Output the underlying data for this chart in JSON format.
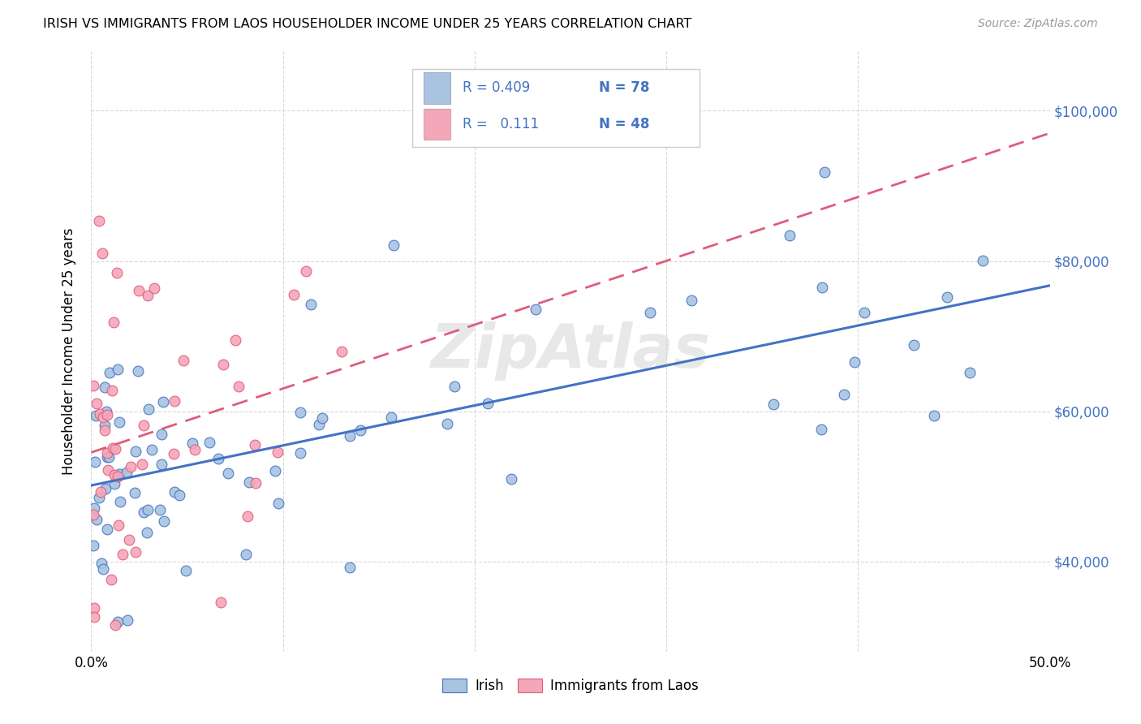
{
  "title": "IRISH VS IMMIGRANTS FROM LAOS HOUSEHOLDER INCOME UNDER 25 YEARS CORRELATION CHART",
  "source": "Source: ZipAtlas.com",
  "ylabel": "Householder Income Under 25 years",
  "ytick_labels": [
    "$40,000",
    "$60,000",
    "$80,000",
    "$100,000"
  ],
  "ytick_values": [
    40000,
    60000,
    80000,
    100000
  ],
  "xlim": [
    0.0,
    0.5
  ],
  "ylim": [
    28000,
    108000
  ],
  "legend_irish": "Irish",
  "legend_laos": "Immigrants from Laos",
  "irish_color": "#a8c4e0",
  "laos_color": "#f4a7b9",
  "irish_line_color": "#4472c4",
  "laos_line_color": "#e05c7a",
  "text_blue": "#4472c4",
  "watermark": "ZipAtlas",
  "grid_color": "#d8d8d8",
  "irish_seed": 42,
  "laos_seed": 7
}
